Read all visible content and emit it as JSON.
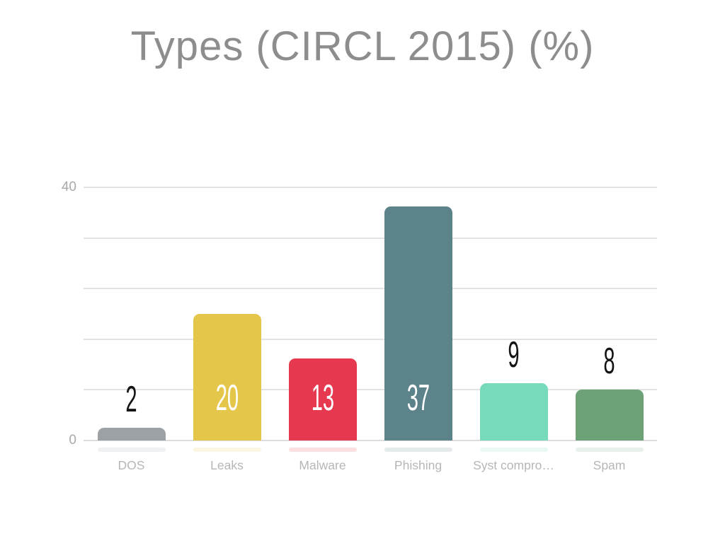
{
  "chart_data": {
    "type": "bar",
    "title": "Types (CIRCL 2015) (%)",
    "categories": [
      "DOS",
      "Leaks",
      "Malware",
      "Phishing",
      "Syst compro…",
      "Spam"
    ],
    "values": [
      2,
      20,
      13,
      37,
      9,
      8
    ],
    "value_labels": [
      "2",
      "20",
      "13",
      "37",
      "9",
      "8"
    ],
    "bar_colors": [
      "#9ca1a5",
      "#e4c64b",
      "#e6394f",
      "#5c828a",
      "#78dabc",
      "#6ca276"
    ],
    "value_label_inside": [
      false,
      true,
      true,
      true,
      false,
      false
    ],
    "xlabel": "",
    "ylabel": "",
    "ylim": [
      0,
      40
    ],
    "gridline_values": [
      0,
      8,
      16,
      24,
      32,
      40
    ],
    "yticks": [
      {
        "value": 0,
        "label": "0"
      },
      {
        "value": 40,
        "label": "40"
      }
    ],
    "grid": true,
    "legend": "none"
  },
  "colors": {
    "background": "#ffffff",
    "title": "#8d8d8d",
    "tick_label": "#a9a9a9",
    "category_label": "#b6b6b6",
    "gridline": "#e2e2e2",
    "baseline": "#dcdcdc",
    "value_label_dark": "#141414",
    "value_label_light": "#ffffff"
  }
}
